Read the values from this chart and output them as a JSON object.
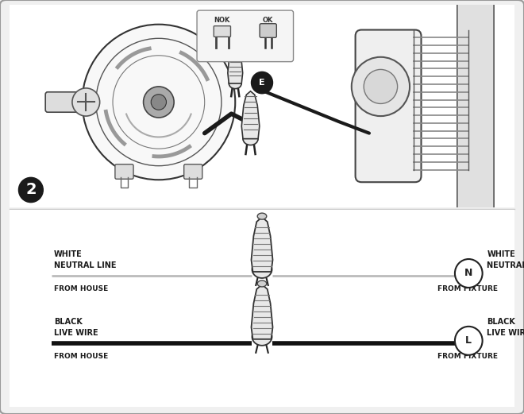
{
  "bg_color": "#f0f0f0",
  "fig_width": 6.6,
  "fig_height": 5.21,
  "white_wire": {
    "left_label_line1": "WHITE",
    "left_label_line2": "NEUTRAL LINE",
    "left_sublabel": "FROM HOUSE",
    "right_label_line1": "WHITE",
    "right_label_line2": "NEUTRAL LINE",
    "right_sublabel": "FROM FIXTURE",
    "symbol": "N",
    "line_color": "#bbbbbb",
    "line_thickness": 2.0
  },
  "black_wire": {
    "left_label_line1": "BLACK",
    "left_label_line2": "LIVE WIRE",
    "left_sublabel": "FROM HOUSE",
    "right_label_line1": "BLACK",
    "right_label_line2": "LIVE WIRE",
    "right_sublabel": "FROM FIXTURE",
    "symbol": "L",
    "line_color": "#111111",
    "line_thickness": 4.0
  },
  "text_color": "#1a1a1a",
  "label_fontsize": 7.0,
  "sublabel_fontsize": 6.5,
  "panel_edge_color": "#aaaaaa",
  "panel_bg": "#ffffff"
}
